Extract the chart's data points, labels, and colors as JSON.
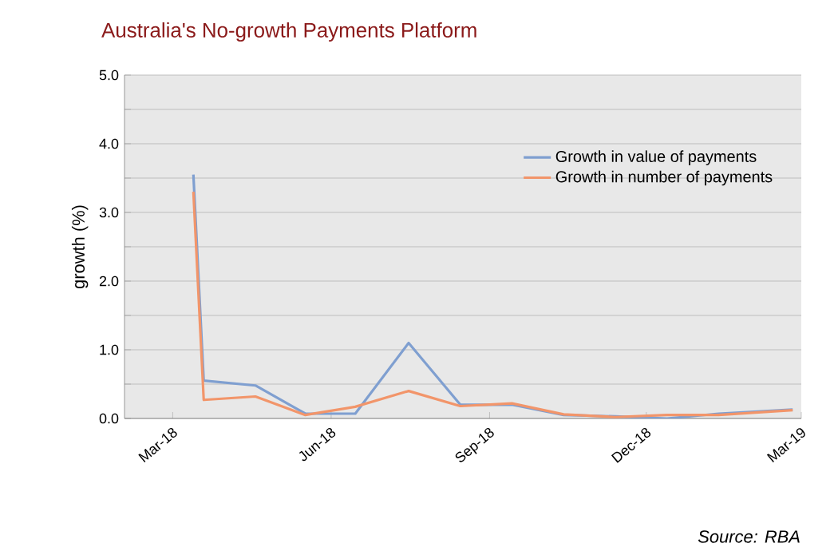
{
  "chart_data": {
    "type": "line",
    "title": "Australia's No-growth Payments Platform",
    "ylabel": "growth (%)",
    "annotations": [
      "Source: RBA"
    ],
    "x": [
      "2018-03-13",
      "2018-03-19",
      "2018-04-18",
      "2018-05-17",
      "2018-06-15",
      "2018-07-16",
      "2018-08-15",
      "2018-09-14",
      "2018-10-14",
      "2018-11-13",
      "2018-12-13",
      "2019-01-12",
      "2019-02-24"
    ],
    "series": [
      {
        "name": "Growth in value of payments",
        "color": "#7f9fd0",
        "values": [
          3.55,
          0.55,
          0.48,
          0.07,
          0.07,
          1.1,
          0.2,
          0.2,
          0.05,
          0.03,
          0.0,
          0.07,
          0.13
        ]
      },
      {
        "name": "Growth in number of payments",
        "color": "#f2956a",
        "values": [
          3.3,
          0.27,
          0.32,
          0.05,
          0.17,
          0.4,
          0.18,
          0.22,
          0.06,
          0.02,
          0.05,
          0.05,
          0.12
        ]
      }
    ],
    "xlim": [
      "2018-02-01",
      "2019-03-01"
    ],
    "xticks": [
      {
        "value": "2018-03-01",
        "label": "Mar-18"
      },
      {
        "value": "2018-06-01",
        "label": "Jun-18"
      },
      {
        "value": "2018-09-01",
        "label": "Sep-18"
      },
      {
        "value": "2018-12-01",
        "label": "Dec-18"
      },
      {
        "value": "2019-03-01",
        "label": "Mar-19"
      }
    ],
    "ylim": [
      0,
      5
    ],
    "yticks": [
      {
        "value": 0,
        "label": "0.0"
      },
      {
        "value": 0.5,
        "label": null
      },
      {
        "value": 1,
        "label": "1.0"
      },
      {
        "value": 1.5,
        "label": null
      },
      {
        "value": 2,
        "label": "2.0"
      },
      {
        "value": 2.5,
        "label": null
      },
      {
        "value": 3,
        "label": "3.0"
      },
      {
        "value": 3.5,
        "label": null
      },
      {
        "value": 4,
        "label": "4.0"
      },
      {
        "value": 4.5,
        "label": null
      },
      {
        "value": 5,
        "label": "5.0"
      }
    ],
    "grid": "y",
    "legend": "top right",
    "marker": "none",
    "line_style": "solid"
  }
}
